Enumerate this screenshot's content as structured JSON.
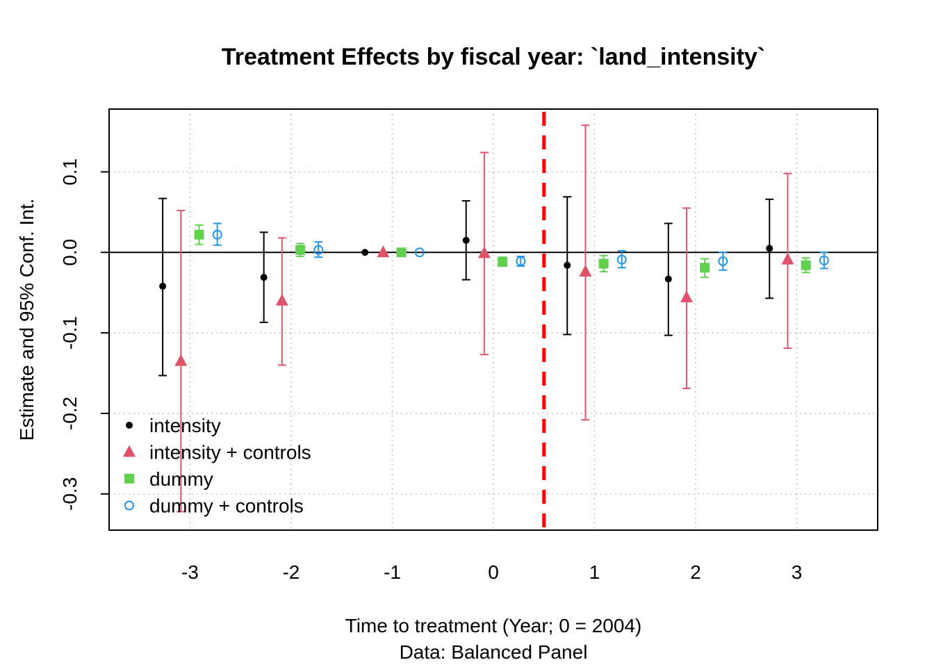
{
  "chart_data": {
    "type": "scatter",
    "title": "Treatment Effects by fiscal year: `land_intensity`",
    "xlabel": "Time to treatment (Year; 0 = 2004)",
    "sublabel": "Data: Balanced Panel",
    "ylabel": "Estimate and 95% Conf. Int.",
    "x_ticks": [
      -3,
      -2,
      -1,
      0,
      1,
      2,
      3
    ],
    "x_tick_labels": [
      "-3",
      "-2",
      "-1",
      "0",
      "1",
      "2",
      "3"
    ],
    "y_ticks": [
      -0.3,
      -0.2,
      -0.1,
      0.0,
      0.1
    ],
    "y_tick_labels": [
      "-0.3",
      "-0.2",
      "-0.1",
      "0.0",
      "0.1"
    ],
    "xlim": [
      -3.8,
      3.8
    ],
    "ylim": [
      -0.345,
      0.178
    ],
    "grid": true,
    "reference_hline": 0,
    "reference_vline": 0.5,
    "reference_vline_color": "#FF0000",
    "legend_position": "bottom-left",
    "series": [
      {
        "name": "intensity",
        "marker": "dot",
        "color": "#000000",
        "offset": -0.27,
        "points": [
          {
            "x": -3,
            "y": -0.042,
            "lo": -0.153,
            "hi": 0.067
          },
          {
            "x": -2,
            "y": -0.031,
            "lo": -0.087,
            "hi": 0.025
          },
          {
            "x": -1,
            "y": 0.0,
            "lo": 0.0,
            "hi": 0.0
          },
          {
            "x": 0,
            "y": 0.015,
            "lo": -0.034,
            "hi": 0.064
          },
          {
            "x": 1,
            "y": -0.016,
            "lo": -0.102,
            "hi": 0.069
          },
          {
            "x": 2,
            "y": -0.033,
            "lo": -0.103,
            "hi": 0.036
          },
          {
            "x": 3,
            "y": 0.005,
            "lo": -0.057,
            "hi": 0.066
          }
        ]
      },
      {
        "name": "intensity + controls",
        "marker": "triangle",
        "color": "#DF536B",
        "offset": -0.09,
        "points": [
          {
            "x": -3,
            "y": -0.135,
            "lo": -0.322,
            "hi": 0.052
          },
          {
            "x": -2,
            "y": -0.06,
            "lo": -0.14,
            "hi": 0.018
          },
          {
            "x": -1,
            "y": 0.0,
            "lo": 0.0,
            "hi": 0.0
          },
          {
            "x": 0,
            "y": -0.001,
            "lo": -0.127,
            "hi": 0.124
          },
          {
            "x": 1,
            "y": -0.024,
            "lo": -0.208,
            "hi": 0.158
          },
          {
            "x": 2,
            "y": -0.056,
            "lo": -0.169,
            "hi": 0.055
          },
          {
            "x": 3,
            "y": -0.009,
            "lo": -0.119,
            "hi": 0.098
          }
        ]
      },
      {
        "name": "dummy",
        "marker": "square",
        "color": "#61D04F",
        "offset": 0.09,
        "points": [
          {
            "x": -3,
            "y": 0.022,
            "lo": 0.01,
            "hi": 0.034
          },
          {
            "x": -2,
            "y": 0.003,
            "lo": -0.005,
            "hi": 0.011
          },
          {
            "x": -1,
            "y": 0.0,
            "lo": 0.0,
            "hi": 0.0
          },
          {
            "x": 0,
            "y": -0.012,
            "lo": -0.017,
            "hi": -0.006
          },
          {
            "x": 1,
            "y": -0.014,
            "lo": -0.024,
            "hi": -0.004
          },
          {
            "x": 2,
            "y": -0.019,
            "lo": -0.031,
            "hi": -0.008
          },
          {
            "x": 3,
            "y": -0.016,
            "lo": -0.025,
            "hi": -0.007
          }
        ]
      },
      {
        "name": "dummy + controls",
        "marker": "circle-open",
        "color": "#2297E6",
        "offset": 0.27,
        "points": [
          {
            "x": -3,
            "y": 0.022,
            "lo": 0.009,
            "hi": 0.036
          },
          {
            "x": -2,
            "y": 0.003,
            "lo": -0.006,
            "hi": 0.013
          },
          {
            "x": -1,
            "y": 0.0,
            "lo": 0.0,
            "hi": 0.0
          },
          {
            "x": 0,
            "y": -0.011,
            "lo": -0.017,
            "hi": -0.005
          },
          {
            "x": 1,
            "y": -0.009,
            "lo": -0.019,
            "hi": 0.002
          },
          {
            "x": 2,
            "y": -0.011,
            "lo": -0.022,
            "hi": 0.0
          },
          {
            "x": 3,
            "y": -0.01,
            "lo": -0.02,
            "hi": 0.0
          }
        ]
      }
    ]
  }
}
